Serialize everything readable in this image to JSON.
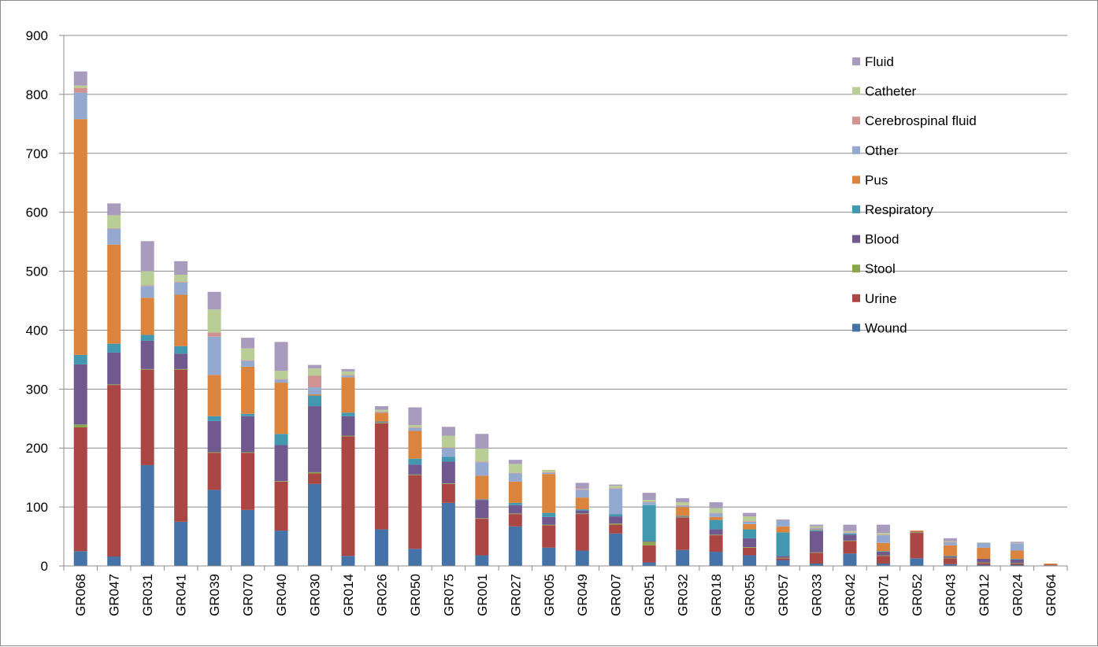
{
  "chart_data": {
    "type": "bar",
    "stacked": true,
    "title": "",
    "xlabel": "",
    "ylabel": "",
    "ylim": [
      0,
      900
    ],
    "yticks": [
      "0",
      "100",
      "200",
      "300",
      "400",
      "500",
      "600",
      "700",
      "800",
      "900"
    ],
    "grid": true,
    "legend_position": "top-right",
    "categories": [
      "GR068",
      "GR047",
      "GR031",
      "GR041",
      "GR039",
      "GR070",
      "GR040",
      "GR030",
      "GR014",
      "GR026",
      "GR050",
      "GR075",
      "GR001",
      "GR027",
      "GR005",
      "GR049",
      "GR007",
      "GR051",
      "GR032",
      "GR018",
      "GR055",
      "GR057",
      "GR033",
      "GR042",
      "GR071",
      "GR052",
      "GR043",
      "GR012",
      "GR024",
      "GR064"
    ],
    "series": [
      {
        "name": "Wound",
        "color": "#4572A7",
        "values": [
          25,
          16,
          171,
          75,
          129,
          95,
          60,
          139,
          17,
          62,
          29,
          107,
          18,
          67,
          31,
          26,
          55,
          6,
          27,
          24,
          18,
          10,
          4,
          21,
          4,
          13,
          3,
          2,
          2,
          1
        ]
      },
      {
        "name": "Urine",
        "color": "#AA4643",
        "values": [
          210,
          291,
          162,
          258,
          63,
          97,
          83,
          18,
          203,
          180,
          125,
          32,
          62,
          21,
          38,
          62,
          15,
          29,
          55,
          28,
          13,
          3,
          18,
          21,
          13,
          43,
          10,
          3,
          2,
          1
        ]
      },
      {
        "name": "Stool",
        "color": "#89A54E",
        "values": [
          5,
          1,
          1,
          1,
          1,
          1,
          1,
          2,
          1,
          1,
          1,
          1,
          1,
          1,
          1,
          1,
          2,
          6,
          1,
          1,
          1,
          1,
          1,
          1,
          1,
          1,
          1,
          1,
          1,
          0
        ]
      },
      {
        "name": "Blood",
        "color": "#71588F",
        "values": [
          102,
          54,
          48,
          26,
          53,
          61,
          61,
          112,
          33,
          1,
          17,
          37,
          31,
          14,
          13,
          5,
          12,
          1,
          1,
          9,
          15,
          3,
          36,
          10,
          6,
          1,
          2,
          6,
          6,
          0
        ]
      },
      {
        "name": "Respiratory",
        "color": "#4198AF",
        "values": [
          16,
          15,
          10,
          13,
          8,
          4,
          19,
          18,
          6,
          1,
          10,
          8,
          1,
          4,
          7,
          2,
          4,
          61,
          1,
          16,
          15,
          40,
          2,
          2,
          1,
          0,
          1,
          0,
          1,
          0
        ]
      },
      {
        "name": "Pus",
        "color": "#DB843D",
        "values": [
          400,
          168,
          63,
          87,
          70,
          80,
          87,
          2,
          60,
          15,
          47,
          0,
          40,
          36,
          66,
          20,
          0,
          0,
          15,
          5,
          9,
          10,
          1,
          0,
          14,
          2,
          18,
          19,
          14,
          2
        ]
      },
      {
        "name": "Other",
        "color": "#93A9CF",
        "values": [
          45,
          27,
          20,
          21,
          65,
          10,
          5,
          12,
          3,
          1,
          5,
          15,
          23,
          14,
          2,
          13,
          43,
          5,
          2,
          6,
          4,
          11,
          2,
          1,
          13,
          0,
          5,
          8,
          12,
          0
        ]
      },
      {
        "name": "Cerebrospinal fluid",
        "color": "#D19392",
        "values": [
          8,
          1,
          1,
          1,
          7,
          1,
          1,
          20,
          1,
          1,
          1,
          1,
          1,
          1,
          1,
          1,
          1,
          1,
          1,
          1,
          1,
          1,
          1,
          1,
          1,
          0,
          1,
          0,
          0,
          0
        ]
      },
      {
        "name": "Catheter",
        "color": "#B9CD96",
        "values": [
          4,
          22,
          24,
          12,
          39,
          20,
          14,
          12,
          6,
          3,
          4,
          20,
          22,
          15,
          4,
          1,
          4,
          3,
          5,
          8,
          8,
          0,
          2,
          2,
          3,
          0,
          1,
          1,
          1,
          0
        ]
      },
      {
        "name": "Fluid",
        "color": "#A99BBD",
        "values": [
          24,
          20,
          51,
          23,
          30,
          18,
          49,
          6,
          4,
          6,
          30,
          15,
          25,
          7,
          0,
          10,
          2,
          12,
          7,
          10,
          6,
          0,
          3,
          11,
          14,
          0,
          5,
          0,
          2,
          0
        ]
      }
    ]
  }
}
